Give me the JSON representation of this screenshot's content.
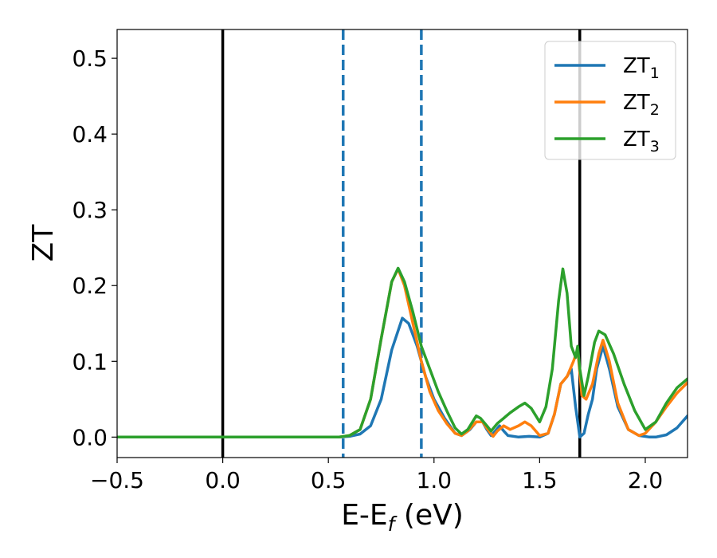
{
  "chart_data": {
    "type": "line",
    "xlabel": "E-E",
    "xlabel_sub": "f",
    "xlabel_unit": " (eV)",
    "ylabel": "ZT",
    "xlim": [
      -0.5,
      2.2
    ],
    "ylim": [
      -0.027,
      0.538
    ],
    "grid": false,
    "legend_placement": "top-right",
    "x_ticks": [
      {
        "value": -0.5,
        "label": "−0.5"
      },
      {
        "value": 0.0,
        "label": "0.0"
      },
      {
        "value": 0.5,
        "label": "0.5"
      },
      {
        "value": 1.0,
        "label": "1.0"
      },
      {
        "value": 1.5,
        "label": "1.5"
      },
      {
        "value": 2.0,
        "label": "2.0"
      }
    ],
    "y_ticks": [
      {
        "value": 0.0,
        "label": "0.0"
      },
      {
        "value": 0.1,
        "label": "0.1"
      },
      {
        "value": 0.2,
        "label": "0.2"
      },
      {
        "value": 0.3,
        "label": "0.3"
      },
      {
        "value": 0.4,
        "label": "0.4"
      },
      {
        "value": 0.5,
        "label": "0.5"
      }
    ],
    "vlines": [
      {
        "x": 0.0,
        "color": "#000000",
        "style": "solid"
      },
      {
        "x": 1.69,
        "color": "#000000",
        "style": "solid"
      },
      {
        "x": 0.57,
        "color": "#1f77b4",
        "style": "dashed"
      },
      {
        "x": 0.94,
        "color": "#1f77b4",
        "style": "dashed"
      }
    ],
    "series": [
      {
        "name": "ZT",
        "name_sub": "1",
        "color": "#1f77b4",
        "points": [
          [
            -0.5,
            0
          ],
          [
            0.55,
            0
          ],
          [
            0.6,
            0.001
          ],
          [
            0.65,
            0.004
          ],
          [
            0.7,
            0.015
          ],
          [
            0.75,
            0.05
          ],
          [
            0.8,
            0.115
          ],
          [
            0.85,
            0.157
          ],
          [
            0.88,
            0.15
          ],
          [
            0.92,
            0.12
          ],
          [
            0.96,
            0.08
          ],
          [
            1.0,
            0.05
          ],
          [
            1.05,
            0.025
          ],
          [
            1.1,
            0.005
          ],
          [
            1.13,
            0.002
          ],
          [
            1.17,
            0.01
          ],
          [
            1.2,
            0.02
          ],
          [
            1.23,
            0.02
          ],
          [
            1.25,
            0.01
          ],
          [
            1.27,
            0.002
          ],
          [
            1.29,
            0.008
          ],
          [
            1.31,
            0.015
          ],
          [
            1.33,
            0.008
          ],
          [
            1.35,
            0.002
          ],
          [
            1.4,
            0
          ],
          [
            1.45,
            0.001
          ],
          [
            1.5,
            0.0
          ],
          [
            1.54,
            0.005
          ],
          [
            1.57,
            0.03
          ],
          [
            1.6,
            0.07
          ],
          [
            1.63,
            0.08
          ],
          [
            1.65,
            0.09
          ],
          [
            1.67,
            0.04
          ],
          [
            1.69,
            0.0
          ],
          [
            1.71,
            0.005
          ],
          [
            1.73,
            0.03
          ],
          [
            1.75,
            0.05
          ],
          [
            1.77,
            0.09
          ],
          [
            1.8,
            0.12
          ],
          [
            1.83,
            0.09
          ],
          [
            1.87,
            0.04
          ],
          [
            1.92,
            0.01
          ],
          [
            1.97,
            0.002
          ],
          [
            2.02,
            0.0
          ],
          [
            2.05,
            0.0
          ],
          [
            2.1,
            0.003
          ],
          [
            2.15,
            0.012
          ],
          [
            2.2,
            0.028
          ]
        ]
      },
      {
        "name": "ZT",
        "name_sub": "2",
        "color": "#ff7f0e",
        "points": [
          [
            -0.5,
            0
          ],
          [
            0.55,
            0
          ],
          [
            0.6,
            0.002
          ],
          [
            0.65,
            0.01
          ],
          [
            0.7,
            0.05
          ],
          [
            0.75,
            0.13
          ],
          [
            0.8,
            0.205
          ],
          [
            0.83,
            0.222
          ],
          [
            0.86,
            0.2
          ],
          [
            0.9,
            0.15
          ],
          [
            0.94,
            0.1
          ],
          [
            0.98,
            0.06
          ],
          [
            1.02,
            0.035
          ],
          [
            1.06,
            0.018
          ],
          [
            1.1,
            0.005
          ],
          [
            1.13,
            0.002
          ],
          [
            1.16,
            0.008
          ],
          [
            1.2,
            0.02
          ],
          [
            1.23,
            0.02
          ],
          [
            1.26,
            0.008
          ],
          [
            1.28,
            0.001
          ],
          [
            1.3,
            0.008
          ],
          [
            1.33,
            0.015
          ],
          [
            1.36,
            0.01
          ],
          [
            1.4,
            0.015
          ],
          [
            1.43,
            0.02
          ],
          [
            1.46,
            0.015
          ],
          [
            1.5,
            0.002
          ],
          [
            1.54,
            0.005
          ],
          [
            1.57,
            0.03
          ],
          [
            1.6,
            0.07
          ],
          [
            1.63,
            0.08
          ],
          [
            1.66,
            0.1
          ],
          [
            1.68,
            0.115
          ],
          [
            1.7,
            0.055
          ],
          [
            1.72,
            0.05
          ],
          [
            1.75,
            0.07
          ],
          [
            1.78,
            0.11
          ],
          [
            1.8,
            0.128
          ],
          [
            1.83,
            0.1
          ],
          [
            1.87,
            0.045
          ],
          [
            1.92,
            0.01
          ],
          [
            1.97,
            0.002
          ],
          [
            2.0,
            0.005
          ],
          [
            2.05,
            0.02
          ],
          [
            2.1,
            0.04
          ],
          [
            2.15,
            0.058
          ],
          [
            2.2,
            0.072
          ]
        ]
      },
      {
        "name": "ZT",
        "name_sub": "3",
        "color": "#2ca02c",
        "points": [
          [
            -0.5,
            0
          ],
          [
            0.55,
            0
          ],
          [
            0.6,
            0.002
          ],
          [
            0.65,
            0.01
          ],
          [
            0.7,
            0.05
          ],
          [
            0.75,
            0.13
          ],
          [
            0.8,
            0.205
          ],
          [
            0.83,
            0.223
          ],
          [
            0.86,
            0.205
          ],
          [
            0.9,
            0.165
          ],
          [
            0.94,
            0.12
          ],
          [
            0.98,
            0.09
          ],
          [
            1.02,
            0.06
          ],
          [
            1.06,
            0.035
          ],
          [
            1.1,
            0.012
          ],
          [
            1.13,
            0.004
          ],
          [
            1.16,
            0.01
          ],
          [
            1.2,
            0.028
          ],
          [
            1.22,
            0.025
          ],
          [
            1.25,
            0.015
          ],
          [
            1.27,
            0.008
          ],
          [
            1.3,
            0.018
          ],
          [
            1.33,
            0.025
          ],
          [
            1.36,
            0.032
          ],
          [
            1.4,
            0.04
          ],
          [
            1.43,
            0.045
          ],
          [
            1.46,
            0.038
          ],
          [
            1.5,
            0.02
          ],
          [
            1.53,
            0.04
          ],
          [
            1.56,
            0.09
          ],
          [
            1.59,
            0.18
          ],
          [
            1.61,
            0.222
          ],
          [
            1.63,
            0.19
          ],
          [
            1.65,
            0.12
          ],
          [
            1.67,
            0.105
          ],
          [
            1.68,
            0.12
          ],
          [
            1.69,
            0.09
          ],
          [
            1.71,
            0.055
          ],
          [
            1.73,
            0.08
          ],
          [
            1.76,
            0.125
          ],
          [
            1.78,
            0.14
          ],
          [
            1.81,
            0.135
          ],
          [
            1.85,
            0.11
          ],
          [
            1.9,
            0.07
          ],
          [
            1.95,
            0.035
          ],
          [
            2.0,
            0.01
          ],
          [
            2.05,
            0.02
          ],
          [
            2.1,
            0.045
          ],
          [
            2.15,
            0.065
          ],
          [
            2.2,
            0.077
          ]
        ]
      }
    ]
  }
}
